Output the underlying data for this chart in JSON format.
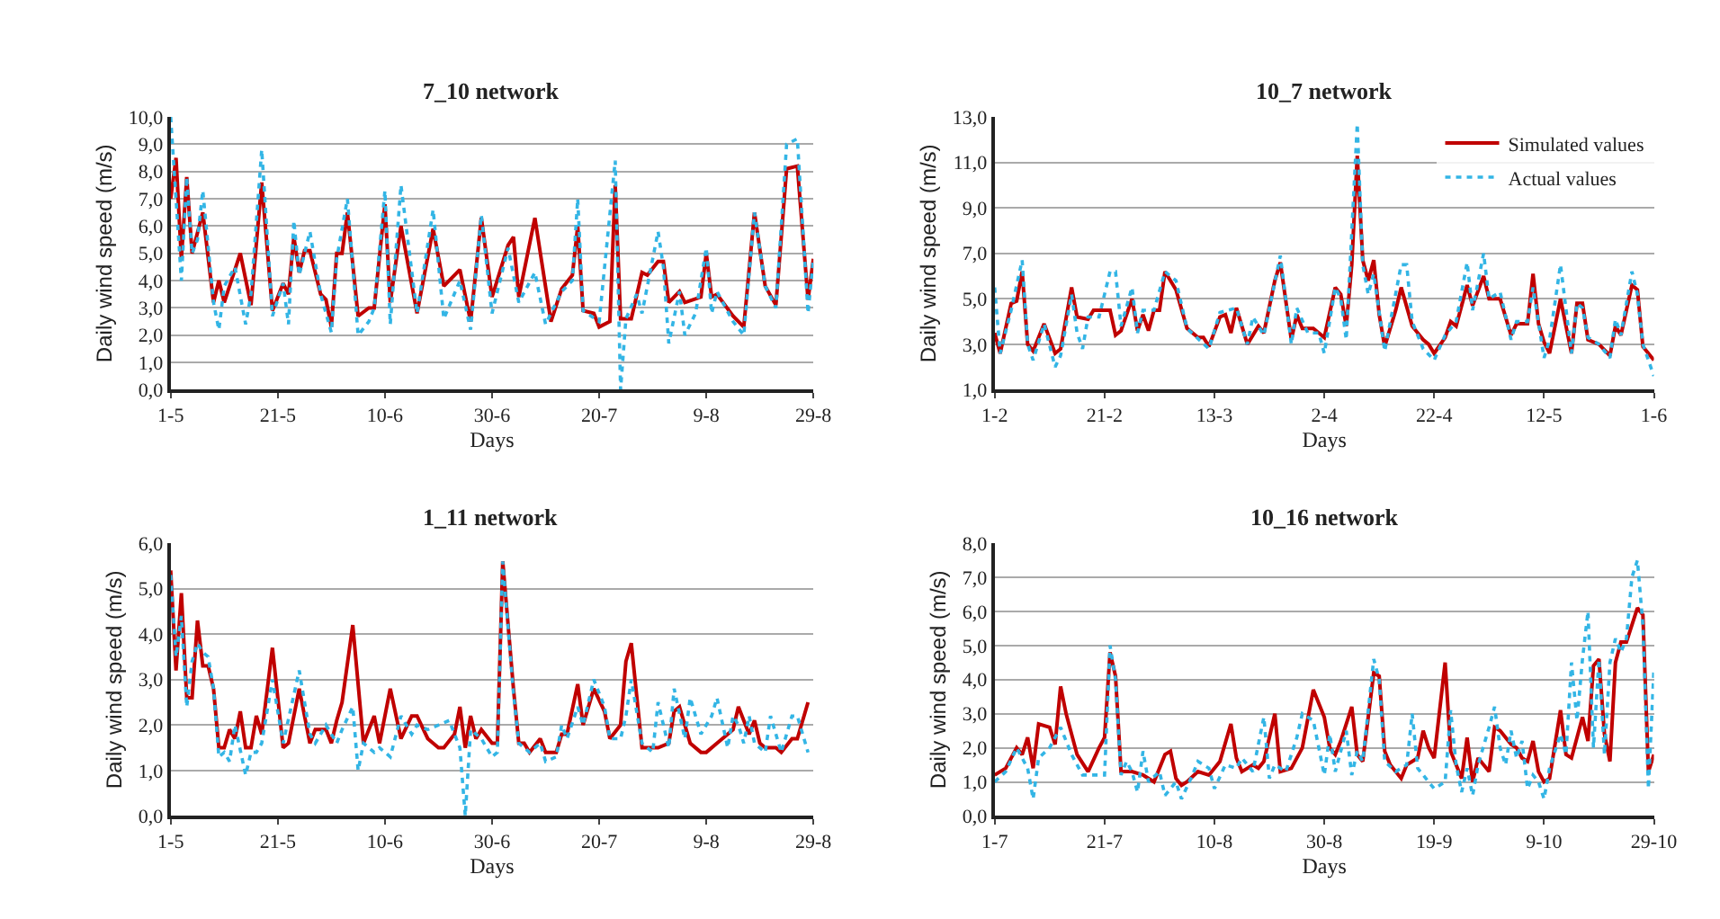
{
  "chart_data": [
    {
      "type": "line",
      "title": "7_10 network",
      "xlabel": "Days",
      "ylabel": "Daily wind speed (m/s)",
      "grid": "y",
      "legend": false,
      "xlim": [
        "--05-01",
        "--08-29"
      ],
      "xticks": [
        {
          "value": "--05-01",
          "label": "1-5"
        },
        {
          "value": "--05-21",
          "label": "21-5"
        },
        {
          "value": "--06-10",
          "label": "10-6"
        },
        {
          "value": "--06-30",
          "label": "30-6"
        },
        {
          "value": "--07-20",
          "label": "20-7"
        },
        {
          "value": "--08-09",
          "label": "9-8"
        },
        {
          "value": "--08-29",
          "label": "29-8"
        }
      ],
      "ylim": [
        0,
        10
      ],
      "yticks": [
        {
          "value": 0,
          "label": "0,0"
        },
        {
          "value": 1,
          "label": "1,0"
        },
        {
          "value": 2,
          "label": "2,0"
        },
        {
          "value": 3,
          "label": "3,0"
        },
        {
          "value": 4,
          "label": "4,0"
        },
        {
          "value": 5,
          "label": "5,0"
        },
        {
          "value": 6,
          "label": "6,0"
        },
        {
          "value": 7,
          "label": "7,0"
        },
        {
          "value": 8,
          "label": "8,0"
        },
        {
          "value": 9,
          "label": "9,0"
        },
        {
          "value": 10,
          "label": "10,0"
        }
      ],
      "series": [
        {
          "color": "#c00000",
          "line_style": "solid",
          "x": [
            "--05-01",
            "--05-02",
            "--05-03",
            "--05-04",
            "--05-05",
            "--05-07",
            "--05-09",
            "--05-10",
            "--05-11",
            "--05-14",
            "--05-16",
            "--05-18",
            "--05-20",
            "--05-22",
            "--05-23",
            "--05-24",
            "--05-25",
            "--05-26",
            "--05-27",
            "--05-29",
            "--05-30",
            "--05-31",
            "--06-01",
            "--06-02",
            "--06-03",
            "--06-05",
            "--06-07",
            "--06-08",
            "--06-10",
            "--06-11",
            "--06-13",
            "--06-16",
            "--06-19",
            "--06-21",
            "--06-24",
            "--06-26",
            "--06-28",
            "--06-30",
            "--07-03",
            "--07-04",
            "--07-05",
            "--07-08",
            "--07-11",
            "--07-13",
            "--07-15",
            "--07-16",
            "--07-17",
            "--07-19",
            "--07-20",
            "--07-22",
            "--07-23",
            "--07-24",
            "--07-26",
            "--07-28",
            "--07-29",
            "--07-31",
            "--08-01",
            "--08-02",
            "--08-04",
            "--08-05",
            "--08-08",
            "--08-09",
            "--08-10",
            "--08-11",
            "--08-14",
            "--08-16",
            "--08-18",
            "--08-20",
            "--08-22",
            "--08-24",
            "--08-26",
            "--08-28",
            "--08-29"
          ],
          "values": [
            7.0,
            8.5,
            4.8,
            7.8,
            5.0,
            6.5,
            3.2,
            4.0,
            3.2,
            5.0,
            3.1,
            7.6,
            2.9,
            3.9,
            3.5,
            5.6,
            4.3,
            5.1,
            5.1,
            3.5,
            3.3,
            2.3,
            5.0,
            5.0,
            6.5,
            2.7,
            3.0,
            3.0,
            6.8,
            3.2,
            6.0,
            2.8,
            5.9,
            3.8,
            4.4,
            2.5,
            6.3,
            3.4,
            5.3,
            5.6,
            3.4,
            6.3,
            2.5,
            3.7,
            4.2,
            6.0,
            2.9,
            2.8,
            2.3,
            2.5,
            7.5,
            2.6,
            2.6,
            4.3,
            4.2,
            4.7,
            4.7,
            3.2,
            3.6,
            3.2,
            3.4,
            5.0,
            3.4,
            3.5,
            2.7,
            2.3,
            6.5,
            3.8,
            3.1,
            8.1,
            8.2,
            3.3,
            4.8
          ]
        },
        {
          "color": "#33b5e5",
          "line_style": "dotted",
          "x": [
            "--05-01",
            "--05-02",
            "--05-03",
            "--05-04",
            "--05-05",
            "--05-06",
            "--05-07",
            "--05-09",
            "--05-10",
            "--05-11",
            "--05-13",
            "--05-15",
            "--05-16",
            "--05-18",
            "--05-20",
            "--05-22",
            "--05-23",
            "--05-24",
            "--05-25",
            "--05-27",
            "--05-29",
            "--05-31",
            "--06-01",
            "--06-03",
            "--06-05",
            "--06-07",
            "--06-08",
            "--06-10",
            "--06-11",
            "--06-13",
            "--06-16",
            "--06-19",
            "--06-21",
            "--06-24",
            "--06-26",
            "--06-28",
            "--06-30",
            "--07-03",
            "--07-05",
            "--07-08",
            "--07-10",
            "--07-13",
            "--07-15",
            "--07-16",
            "--07-17",
            "--07-20",
            "--07-23",
            "--07-24",
            "--07-25",
            "--07-27",
            "--07-28",
            "--07-31",
            "--08-01",
            "--08-02",
            "--08-04",
            "--08-05",
            "--08-07",
            "--08-09",
            "--08-10",
            "--08-11",
            "--08-14",
            "--08-16",
            "--08-18",
            "--08-20",
            "--08-22",
            "--08-24",
            "--08-26",
            "--08-28",
            "--08-29"
          ],
          "values": [
            10.0,
            7.0,
            4.0,
            7.8,
            5.0,
            5.5,
            7.3,
            3.2,
            2.2,
            3.8,
            4.5,
            2.4,
            3.5,
            8.8,
            2.7,
            3.9,
            2.4,
            6.2,
            4.2,
            5.8,
            3.5,
            2.1,
            4.8,
            7.0,
            2.0,
            2.5,
            3.0,
            7.3,
            2.4,
            7.5,
            2.8,
            6.6,
            2.6,
            4.0,
            2.2,
            6.4,
            2.8,
            5.2,
            3.2,
            4.3,
            2.4,
            3.6,
            4.0,
            7.0,
            2.9,
            2.5,
            8.4,
            0.0,
            2.6,
            3.5,
            2.8,
            5.8,
            4.5,
            1.7,
            3.6,
            2.0,
            2.8,
            5.2,
            2.8,
            3.6,
            2.5,
            2.0,
            6.5,
            3.8,
            3.0,
            9.0,
            9.2,
            2.8,
            4.8
          ]
        }
      ]
    },
    {
      "type": "line",
      "title": "10_7 network",
      "xlabel": "Days",
      "ylabel": "Daily wind speed (m/s)",
      "grid": "y",
      "legend": "top right",
      "xlim": [
        "--02-01",
        "--06-01"
      ],
      "xticks": [
        {
          "value": "--02-01",
          "label": "1-2"
        },
        {
          "value": "--02-21",
          "label": "21-2"
        },
        {
          "value": "--03-13",
          "label": "13-3"
        },
        {
          "value": "--04-02",
          "label": "2-4"
        },
        {
          "value": "--04-22",
          "label": "22-4"
        },
        {
          "value": "--05-12",
          "label": "12-5"
        },
        {
          "value": "--06-01",
          "label": "1-6"
        }
      ],
      "ylim": [
        1,
        13
      ],
      "yticks": [
        {
          "value": 1,
          "label": "1,0"
        },
        {
          "value": 3,
          "label": "3,0"
        },
        {
          "value": 5,
          "label": "5,0"
        },
        {
          "value": 7,
          "label": "7,0"
        },
        {
          "value": 9,
          "label": "9,0"
        },
        {
          "value": 11,
          "label": "11,0"
        },
        {
          "value": 13,
          "label": "13,0"
        }
      ],
      "series": [
        {
          "name": "Simulated values",
          "color": "#c00000",
          "line_style": "solid",
          "x": [
            "--02-01",
            "--02-02",
            "--02-04",
            "--02-05",
            "--02-06",
            "--02-07",
            "--02-08",
            "--02-10",
            "--02-12",
            "--02-13",
            "--02-15",
            "--02-16",
            "--02-18",
            "--02-19",
            "--02-21",
            "--02-22",
            "--02-23",
            "--02-24",
            "--02-26",
            "--02-27",
            "--02-28",
            "--03-01",
            "--03-02",
            "--03-03",
            "--03-04",
            "--03-06",
            "--03-08",
            "--03-10",
            "--03-11",
            "--03-12",
            "--03-14",
            "--03-15",
            "--03-16",
            "--03-17",
            "--03-19",
            "--03-21",
            "--03-22",
            "--03-24",
            "--03-25",
            "--03-27",
            "--03-28",
            "--03-29",
            "--03-31",
            "--04-01",
            "--04-02",
            "--04-04",
            "--04-05",
            "--04-06",
            "--04-07",
            "--04-08",
            "--04-09",
            "--04-10",
            "--04-11",
            "--04-12",
            "--04-13",
            "--04-15",
            "--04-16",
            "--04-18",
            "--04-20",
            "--04-21",
            "--04-22",
            "--04-24",
            "--04-25",
            "--04-26",
            "--04-28",
            "--04-29",
            "--05-01",
            "--05-02",
            "--05-04",
            "--05-06",
            "--05-07",
            "--05-09",
            "--05-10",
            "--05-11",
            "--05-12",
            "--05-13",
            "--05-15",
            "--05-17",
            "--05-18",
            "--05-19",
            "--05-20",
            "--05-22",
            "--05-24",
            "--05-25",
            "--05-26",
            "--05-28",
            "--05-29",
            "--05-30",
            "--06-01"
          ],
          "values": [
            3.5,
            2.6,
            4.8,
            4.9,
            6.2,
            3.0,
            2.7,
            3.9,
            2.6,
            2.8,
            5.5,
            4.2,
            4.1,
            4.5,
            4.5,
            4.5,
            3.4,
            3.6,
            5.0,
            3.6,
            4.3,
            3.6,
            4.5,
            4.5,
            6.2,
            5.4,
            3.7,
            3.3,
            3.3,
            2.9,
            4.2,
            4.3,
            3.5,
            4.6,
            3.0,
            3.8,
            3.5,
            5.8,
            6.6,
            3.2,
            4.3,
            3.7,
            3.7,
            3.5,
            3.3,
            5.5,
            5.2,
            3.8,
            6.5,
            11.3,
            6.7,
            5.8,
            6.7,
            4.3,
            2.9,
            4.5,
            5.5,
            3.8,
            3.2,
            3.0,
            2.6,
            3.3,
            4.0,
            3.8,
            5.6,
            4.7,
            6.0,
            5.0,
            5.0,
            3.4,
            3.9,
            3.9,
            6.1,
            3.9,
            3.1,
            2.6,
            5.0,
            2.6,
            4.8,
            4.8,
            3.2,
            3.0,
            2.5,
            3.8,
            3.4,
            5.6,
            5.4,
            2.9,
            2.3
          ]
        },
        {
          "name": "Actual values",
          "color": "#33b5e5",
          "line_style": "dotted",
          "x": [
            "--02-01",
            "--02-02",
            "--02-04",
            "--02-06",
            "--02-07",
            "--02-08",
            "--02-10",
            "--02-12",
            "--02-13",
            "--02-15",
            "--02-16",
            "--02-17",
            "--02-18",
            "--02-20",
            "--02-22",
            "--02-23",
            "--02-24",
            "--02-26",
            "--02-27",
            "--02-28",
            "--03-02",
            "--03-04",
            "--03-06",
            "--03-08",
            "--03-12",
            "--03-14",
            "--03-17",
            "--03-19",
            "--03-20",
            "--03-22",
            "--03-25",
            "--03-27",
            "--03-28",
            "--03-30",
            "--04-01",
            "--04-02",
            "--04-04",
            "--04-05",
            "--04-06",
            "--04-08",
            "--04-09",
            "--04-10",
            "--04-11",
            "--04-13",
            "--04-16",
            "--04-17",
            "--04-18",
            "--04-20",
            "--04-22",
            "--04-24",
            "--04-26",
            "--04-28",
            "--04-29",
            "--05-01",
            "--05-02",
            "--05-04",
            "--05-06",
            "--05-07",
            "--05-09",
            "--05-10",
            "--05-12",
            "--05-13",
            "--05-15",
            "--05-17",
            "--05-18",
            "--05-19",
            "--05-20",
            "--05-22",
            "--05-24",
            "--05-25",
            "--05-26",
            "--05-28",
            "--05-29",
            "--05-30",
            "--06-01"
          ],
          "values": [
            5.5,
            2.6,
            4.5,
            6.7,
            3.0,
            2.3,
            3.9,
            2.0,
            2.5,
            5.2,
            3.5,
            2.8,
            4.2,
            4.2,
            6.2,
            6.2,
            3.8,
            5.5,
            3.5,
            4.5,
            4.5,
            6.2,
            5.8,
            3.7,
            2.8,
            4.4,
            4.6,
            3.0,
            4.2,
            3.4,
            6.9,
            3.0,
            4.6,
            3.5,
            3.5,
            2.6,
            5.5,
            5.0,
            3.2,
            12.7,
            6.5,
            5.2,
            6.1,
            2.7,
            6.5,
            6.5,
            4.0,
            2.8,
            2.3,
            3.4,
            4.0,
            6.6,
            4.5,
            7.0,
            5.0,
            5.3,
            3.2,
            4.0,
            4.0,
            5.5,
            2.4,
            3.2,
            6.5,
            2.6,
            4.8,
            4.6,
            3.3,
            3.0,
            2.4,
            4.1,
            3.4,
            6.2,
            5.2,
            3.0,
            1.6
          ]
        }
      ]
    },
    {
      "type": "line",
      "title": "1_11 network",
      "xlabel": "Days",
      "ylabel": "Daily wind speed (m/s)",
      "grid": "y",
      "legend": false,
      "xlim": [
        "--05-01",
        "--08-29"
      ],
      "xticks": [
        {
          "value": "--05-01",
          "label": "1-5"
        },
        {
          "value": "--05-21",
          "label": "21-5"
        },
        {
          "value": "--06-10",
          "label": "10-6"
        },
        {
          "value": "--06-30",
          "label": "30-6"
        },
        {
          "value": "--07-20",
          "label": "20-7"
        },
        {
          "value": "--08-09",
          "label": "9-8"
        },
        {
          "value": "--08-29",
          "label": "29-8"
        }
      ],
      "ylim": [
        0,
        6
      ],
      "yticks": [
        {
          "value": 0,
          "label": "0,0"
        },
        {
          "value": 1,
          "label": "1,0"
        },
        {
          "value": 2,
          "label": "2,0"
        },
        {
          "value": 3,
          "label": "3,0"
        },
        {
          "value": 4,
          "label": "4,0"
        },
        {
          "value": 5,
          "label": "5,0"
        },
        {
          "value": 6,
          "label": "6,0"
        }
      ],
      "series": [
        {
          "color": "#c00000",
          "line_style": "solid",
          "x": [
            "--05-01",
            "--05-02",
            "--05-03",
            "--05-04",
            "--05-05",
            "--05-06",
            "--05-07",
            "--05-08",
            "--05-09",
            "--05-10",
            "--05-11",
            "--05-12",
            "--05-13",
            "--05-14",
            "--05-15",
            "--05-16",
            "--05-17",
            "--05-18",
            "--05-20",
            "--05-22",
            "--05-23",
            "--05-25",
            "--05-27",
            "--05-28",
            "--05-30",
            "--05-31",
            "--06-01",
            "--06-02",
            "--06-04",
            "--06-06",
            "--06-08",
            "--06-09",
            "--06-11",
            "--06-13",
            "--06-15",
            "--06-16",
            "--06-18",
            "--06-20",
            "--06-21",
            "--06-23",
            "--06-24",
            "--06-25",
            "--06-26",
            "--06-27",
            "--06-28",
            "--06-30",
            "--07-01",
            "--07-02",
            "--07-04",
            "--07-05",
            "--07-06",
            "--07-07",
            "--07-09",
            "--07-10",
            "--07-12",
            "--07-13",
            "--07-14",
            "--07-16",
            "--07-17",
            "--07-19",
            "--07-21",
            "--07-22",
            "--07-24",
            "--07-25",
            "--07-26",
            "--07-28",
            "--07-30",
            "--07-31",
            "--08-02",
            "--08-03",
            "--08-04",
            "--08-06",
            "--08-08",
            "--08-09",
            "--08-11",
            "--08-13",
            "--08-14",
            "--08-15",
            "--08-16",
            "--08-17",
            "--08-18",
            "--08-19",
            "--08-20",
            "--08-22",
            "--08-23",
            "--08-25",
            "--08-26",
            "--08-28"
          ],
          "values": [
            5.4,
            3.2,
            4.9,
            2.6,
            2.6,
            4.3,
            3.3,
            3.3,
            2.8,
            1.5,
            1.5,
            1.9,
            1.7,
            2.3,
            1.5,
            1.5,
            2.2,
            1.8,
            3.7,
            1.5,
            1.6,
            2.8,
            1.6,
            1.9,
            1.9,
            1.6,
            2.1,
            2.5,
            4.2,
            1.6,
            2.2,
            1.6,
            2.8,
            1.7,
            2.2,
            2.2,
            1.7,
            1.5,
            1.5,
            1.8,
            2.4,
            1.5,
            2.2,
            1.7,
            1.9,
            1.6,
            1.6,
            5.6,
            2.8,
            1.6,
            1.6,
            1.4,
            1.7,
            1.4,
            1.4,
            1.8,
            1.8,
            2.9,
            2.0,
            2.8,
            2.3,
            1.7,
            2.0,
            3.4,
            3.8,
            1.5,
            1.5,
            1.5,
            1.6,
            2.3,
            2.4,
            1.6,
            1.4,
            1.4,
            1.6,
            1.8,
            1.9,
            2.4,
            2.1,
            1.8,
            2.1,
            1.6,
            1.5,
            1.5,
            1.4,
            1.7,
            1.7,
            2.5
          ]
        },
        {
          "color": "#33b5e5",
          "line_style": "dotted",
          "x": [
            "--05-01",
            "--05-02",
            "--05-03",
            "--05-04",
            "--05-05",
            "--05-06",
            "--05-07",
            "--05-08",
            "--05-09",
            "--05-10",
            "--05-11",
            "--05-12",
            "--05-13",
            "--05-15",
            "--05-16",
            "--05-17",
            "--05-18",
            "--05-20",
            "--05-22",
            "--05-25",
            "--05-27",
            "--05-28",
            "--05-30",
            "--06-01",
            "--06-02",
            "--06-04",
            "--06-05",
            "--06-06",
            "--06-08",
            "--06-09",
            "--06-11",
            "--06-13",
            "--06-15",
            "--06-16",
            "--06-18",
            "--06-20",
            "--06-22",
            "--06-24",
            "--06-25",
            "--06-26",
            "--06-28",
            "--06-30",
            "--07-01",
            "--07-02",
            "--07-04",
            "--07-05",
            "--07-07",
            "--07-09",
            "--07-10",
            "--07-12",
            "--07-13",
            "--07-14",
            "--07-16",
            "--07-17",
            "--07-19",
            "--07-21",
            "--07-22",
            "--07-24",
            "--07-25",
            "--07-26",
            "--07-28",
            "--07-30",
            "--07-31",
            "--08-02",
            "--08-03",
            "--08-05",
            "--08-06",
            "--08-08",
            "--08-10",
            "--08-11",
            "--08-13",
            "--08-14",
            "--08-15",
            "--08-16",
            "--08-17",
            "--08-18",
            "--08-20",
            "--08-21",
            "--08-23",
            "--08-25",
            "--08-26",
            "--08-28"
          ],
          "values": [
            5.3,
            3.5,
            4.4,
            2.4,
            3.4,
            3.8,
            3.6,
            3.5,
            2.8,
            1.3,
            1.4,
            1.2,
            2.0,
            0.9,
            1.4,
            1.4,
            1.6,
            3.0,
            1.6,
            3.2,
            1.8,
            1.6,
            2.0,
            1.6,
            1.9,
            2.4,
            1.0,
            1.6,
            1.4,
            1.5,
            1.3,
            2.2,
            1.8,
            2.0,
            1.9,
            2.0,
            2.1,
            1.5,
            0.0,
            1.9,
            1.7,
            1.3,
            1.4,
            5.6,
            2.7,
            1.6,
            1.4,
            1.6,
            1.2,
            1.3,
            2.0,
            1.7,
            2.4,
            2.0,
            3.0,
            2.4,
            1.7,
            1.7,
            2.2,
            3.0,
            1.6,
            1.4,
            2.5,
            1.5,
            2.8,
            1.7,
            2.6,
            1.8,
            2.2,
            2.6,
            1.5,
            2.2,
            2.0,
            1.6,
            2.2,
            1.6,
            1.4,
            2.2,
            1.4,
            2.2,
            2.2,
            1.4
          ]
        }
      ]
    },
    {
      "type": "line",
      "title": "10_16 network",
      "xlabel": "Days",
      "ylabel": "Daily wind speed (m/s)",
      "grid": "y",
      "legend": false,
      "xlim": [
        "--07-01",
        "--10-29"
      ],
      "xticks": [
        {
          "value": "--07-01",
          "label": "1-7"
        },
        {
          "value": "--07-21",
          "label": "21-7"
        },
        {
          "value": "--08-10",
          "label": "10-8"
        },
        {
          "value": "--08-30",
          "label": "30-8"
        },
        {
          "value": "--09-19",
          "label": "19-9"
        },
        {
          "value": "--10-09",
          "label": "9-10"
        },
        {
          "value": "--10-29",
          "label": "29-10"
        }
      ],
      "ylim": [
        0,
        8
      ],
      "yticks": [
        {
          "value": 0,
          "label": "0,0"
        },
        {
          "value": 1,
          "label": "1,0"
        },
        {
          "value": 2,
          "label": "2,0"
        },
        {
          "value": 3,
          "label": "3,0"
        },
        {
          "value": 4,
          "label": "4,0"
        },
        {
          "value": 5,
          "label": "5,0"
        },
        {
          "value": 6,
          "label": "6,0"
        },
        {
          "value": 7,
          "label": "7,0"
        },
        {
          "value": 8,
          "label": "8,0"
        }
      ],
      "series": [
        {
          "color": "#c00000",
          "line_style": "solid",
          "x": [
            "--07-01",
            "--07-03",
            "--07-05",
            "--07-06",
            "--07-07",
            "--07-08",
            "--07-09",
            "--07-11",
            "--07-12",
            "--07-13",
            "--07-14",
            "--07-16",
            "--07-18",
            "--07-20",
            "--07-21",
            "--07-22",
            "--07-23",
            "--07-24",
            "--07-26",
            "--07-28",
            "--07-30",
            "--08-01",
            "--08-02",
            "--08-03",
            "--08-04",
            "--08-05",
            "--08-07",
            "--08-09",
            "--08-11",
            "--08-13",
            "--08-14",
            "--08-15",
            "--08-17",
            "--08-18",
            "--08-19",
            "--08-21",
            "--08-22",
            "--08-24",
            "--08-26",
            "--08-28",
            "--08-30",
            "--08-31",
            "--09-01",
            "--09-02",
            "--09-04",
            "--09-05",
            "--09-06",
            "--09-08",
            "--09-09",
            "--09-10",
            "--09-11",
            "--09-13",
            "--09-14",
            "--09-16",
            "--09-17",
            "--09-18",
            "--09-19",
            "--09-21",
            "--09-22",
            "--09-23",
            "--09-24",
            "--09-25",
            "--09-26",
            "--09-27",
            "--09-28",
            "--09-29",
            "--09-30",
            "--10-01",
            "--10-03",
            "--10-04",
            "--10-05",
            "--10-06",
            "--10-07",
            "--10-08",
            "--10-09",
            "--10-10",
            "--10-12",
            "--10-13",
            "--10-14",
            "--10-16",
            "--10-17",
            "--10-18",
            "--10-19",
            "--10-20",
            "--10-21",
            "--10-22",
            "--10-23",
            "--10-24",
            "--10-26",
            "--10-27",
            "--10-28",
            "--10-29"
          ],
          "values": [
            1.2,
            1.4,
            2.0,
            1.8,
            2.3,
            1.4,
            2.7,
            2.6,
            2.1,
            3.8,
            3.0,
            1.8,
            1.3,
            2.0,
            2.3,
            4.8,
            4.1,
            1.3,
            1.3,
            1.2,
            1.0,
            1.8,
            1.9,
            1.1,
            0.9,
            1.0,
            1.3,
            1.2,
            1.6,
            2.7,
            1.7,
            1.3,
            1.5,
            1.4,
            1.6,
            3.0,
            1.3,
            1.4,
            2.0,
            3.7,
            2.9,
            2.0,
            1.8,
            2.2,
            3.2,
            1.8,
            1.6,
            4.2,
            4.1,
            1.9,
            1.5,
            1.1,
            1.5,
            1.7,
            2.5,
            2.0,
            1.7,
            4.5,
            1.9,
            1.5,
            1.1,
            2.3,
            1.0,
            1.7,
            1.5,
            1.3,
            2.6,
            2.5,
            2.1,
            2.0,
            1.7,
            1.6,
            2.2,
            1.3,
            1.0,
            1.1,
            3.1,
            1.8,
            1.7,
            2.9,
            2.2,
            4.4,
            4.6,
            2.4,
            1.6,
            4.5,
            5.1,
            5.1,
            6.1,
            5.9,
            1.3,
            1.8
          ]
        },
        {
          "color": "#33b5e5",
          "line_style": "dotted",
          "x": [
            "--07-01",
            "--07-03",
            "--07-05",
            "--07-07",
            "--07-08",
            "--07-09",
            "--07-11",
            "--07-13",
            "--07-15",
            "--07-17",
            "--07-19",
            "--07-21",
            "--07-22",
            "--07-23",
            "--07-24",
            "--07-25",
            "--07-26",
            "--07-27",
            "--07-28",
            "--07-29",
            "--07-31",
            "--08-01",
            "--08-03",
            "--08-04",
            "--08-06",
            "--08-07",
            "--08-09",
            "--08-10",
            "--08-12",
            "--08-14",
            "--08-15",
            "--08-17",
            "--08-19",
            "--08-20",
            "--08-21",
            "--08-23",
            "--08-25",
            "--08-26",
            "--08-28",
            "--08-30",
            "--08-31",
            "--09-01",
            "--09-03",
            "--09-04",
            "--09-05",
            "--09-06",
            "--09-08",
            "--09-09",
            "--09-10",
            "--09-12",
            "--09-14",
            "--09-15",
            "--09-16",
            "--09-18",
            "--09-19",
            "--09-21",
            "--09-22",
            "--09-23",
            "--09-24",
            "--09-25",
            "--09-26",
            "--09-27",
            "--09-29",
            "--09-30",
            "--10-01",
            "--10-02",
            "--10-03",
            "--10-04",
            "--10-05",
            "--10-06",
            "--10-07",
            "--10-08",
            "--10-09",
            "--10-10",
            "--10-12",
            "--10-13",
            "--10-14",
            "--10-15",
            "--10-16",
            "--10-17",
            "--10-18",
            "--10-19",
            "--10-20",
            "--10-21",
            "--10-22",
            "--10-23",
            "--10-24",
            "--10-25",
            "--10-26",
            "--10-27",
            "--10-28",
            "--10-29"
          ],
          "values": [
            1.0,
            1.3,
            2.0,
            1.4,
            0.5,
            1.7,
            2.0,
            2.6,
            1.8,
            1.2,
            1.2,
            1.2,
            5.0,
            4.0,
            1.2,
            1.6,
            1.3,
            0.7,
            1.9,
            1.0,
            1.3,
            0.6,
            1.0,
            0.5,
            1.2,
            1.6,
            1.4,
            0.8,
            1.5,
            1.4,
            1.7,
            1.3,
            2.9,
            1.1,
            1.5,
            1.3,
            2.3,
            3.0,
            2.8,
            1.2,
            2.4,
            1.3,
            2.5,
            1.2,
            1.9,
            1.6,
            4.6,
            4.0,
            1.6,
            1.3,
            1.5,
            3.0,
            1.4,
            1.0,
            0.8,
            1.0,
            3.1,
            1.5,
            0.7,
            1.4,
            0.6,
            1.5,
            2.6,
            3.2,
            2.0,
            1.5,
            2.5,
            1.7,
            2.2,
            0.8,
            1.2,
            1.0,
            0.5,
            1.4,
            2.4,
            1.8,
            4.5,
            2.8,
            4.6,
            6.0,
            2.0,
            4.6,
            1.8,
            4.5,
            5.2,
            4.8,
            5.2,
            7.0,
            7.5,
            5.6,
            0.8,
            4.3
          ]
        }
      ]
    }
  ]
}
